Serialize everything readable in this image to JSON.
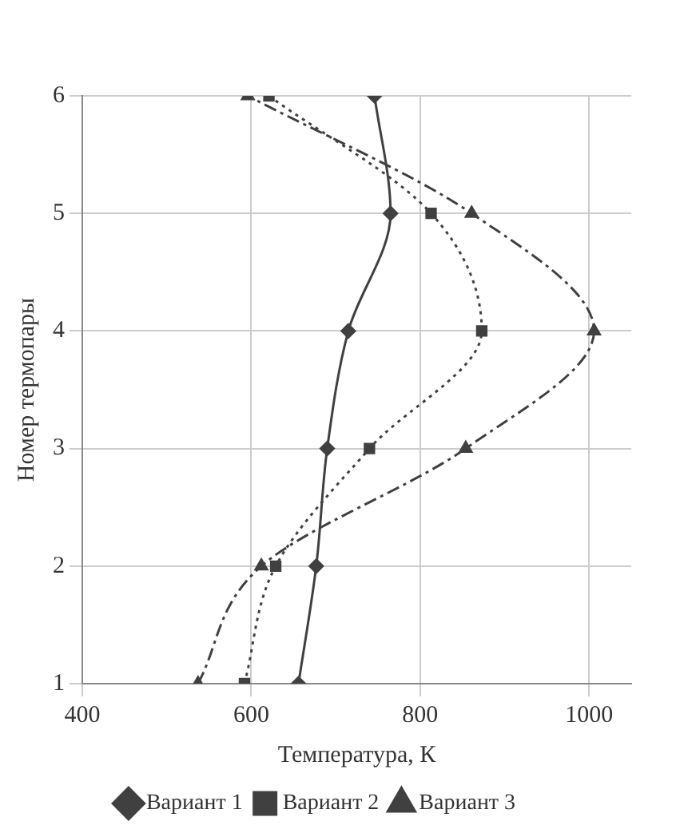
{
  "chart_data": {
    "type": "line",
    "xlabel": "Температура, К",
    "ylabel": "Номер термопары",
    "xlim": [
      400,
      1050
    ],
    "xticks": [
      400,
      600,
      800,
      1000
    ],
    "ylim": [
      1,
      6
    ],
    "yticks": [
      1,
      2,
      3,
      4,
      5,
      6
    ],
    "grid": true,
    "legend": "bottom",
    "series": [
      {
        "name": "Вариант 1",
        "color": "#404040",
        "marker": "diamond",
        "line_style": "solid",
        "x": [
          656,
          677,
          690,
          715,
          765,
          746
        ],
        "values": [
          1,
          2,
          3,
          4,
          5,
          6
        ]
      },
      {
        "name": "Вариант 2",
        "color": "#404040",
        "marker": "square",
        "line_style": "dotted",
        "x": [
          592,
          629,
          740,
          873,
          813,
          621
        ],
        "values": [
          1,
          2,
          3,
          4,
          5,
          6
        ]
      },
      {
        "name": "Вариант 3",
        "color": "#404040",
        "marker": "triangle",
        "line_style": "dashed",
        "x": [
          537,
          612,
          854,
          1006,
          861,
          596
        ],
        "values": [
          1,
          2,
          3,
          4,
          5,
          6
        ]
      }
    ]
  }
}
